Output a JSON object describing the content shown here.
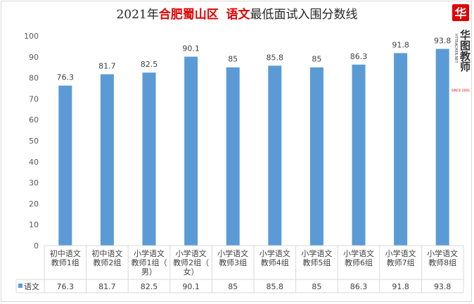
{
  "title": {
    "year": "2021年",
    "region": "合肥蜀山区",
    "subject": "语文",
    "suffix": "最低面试入围分数线"
  },
  "logo": {
    "glyph": "华",
    "brand": "华图教师",
    "url": "HTTEACHER.NET",
    "since": "SINCE 2001"
  },
  "colors": {
    "bar": "#5b9bd5",
    "accent": "#e00000"
  },
  "chart_data": {
    "type": "bar",
    "categories": [
      [
        "初中语文",
        "教师1组"
      ],
      [
        "初中语文",
        "教师2组"
      ],
      [
        "小学语文",
        "教师1组（",
        "男）"
      ],
      [
        "小学语文",
        "教师2组（",
        "女）"
      ],
      [
        "小学语文",
        "教师3组"
      ],
      [
        "小学语文",
        "教师4组"
      ],
      [
        "小学语文",
        "教师5组"
      ],
      [
        "小学语文",
        "教师6组"
      ],
      [
        "小学语文",
        "教师7组"
      ],
      [
        "小学语文",
        "教师8组"
      ]
    ],
    "series": [
      {
        "name": "语文",
        "values": [
          76.3,
          81.7,
          82.5,
          90.1,
          85,
          85.8,
          85,
          86.3,
          91.8,
          93.8
        ],
        "labels": [
          "76.3",
          "81.7",
          "82.5",
          "90.1",
          "85",
          "85.8",
          "85",
          "86.3",
          "91.8",
          "93.8"
        ]
      }
    ],
    "ylim": [
      0,
      100
    ],
    "yticks": [
      0,
      10,
      20,
      30,
      40,
      50,
      60,
      70,
      80,
      90,
      100
    ],
    "grid": false,
    "legend": "data-table"
  }
}
